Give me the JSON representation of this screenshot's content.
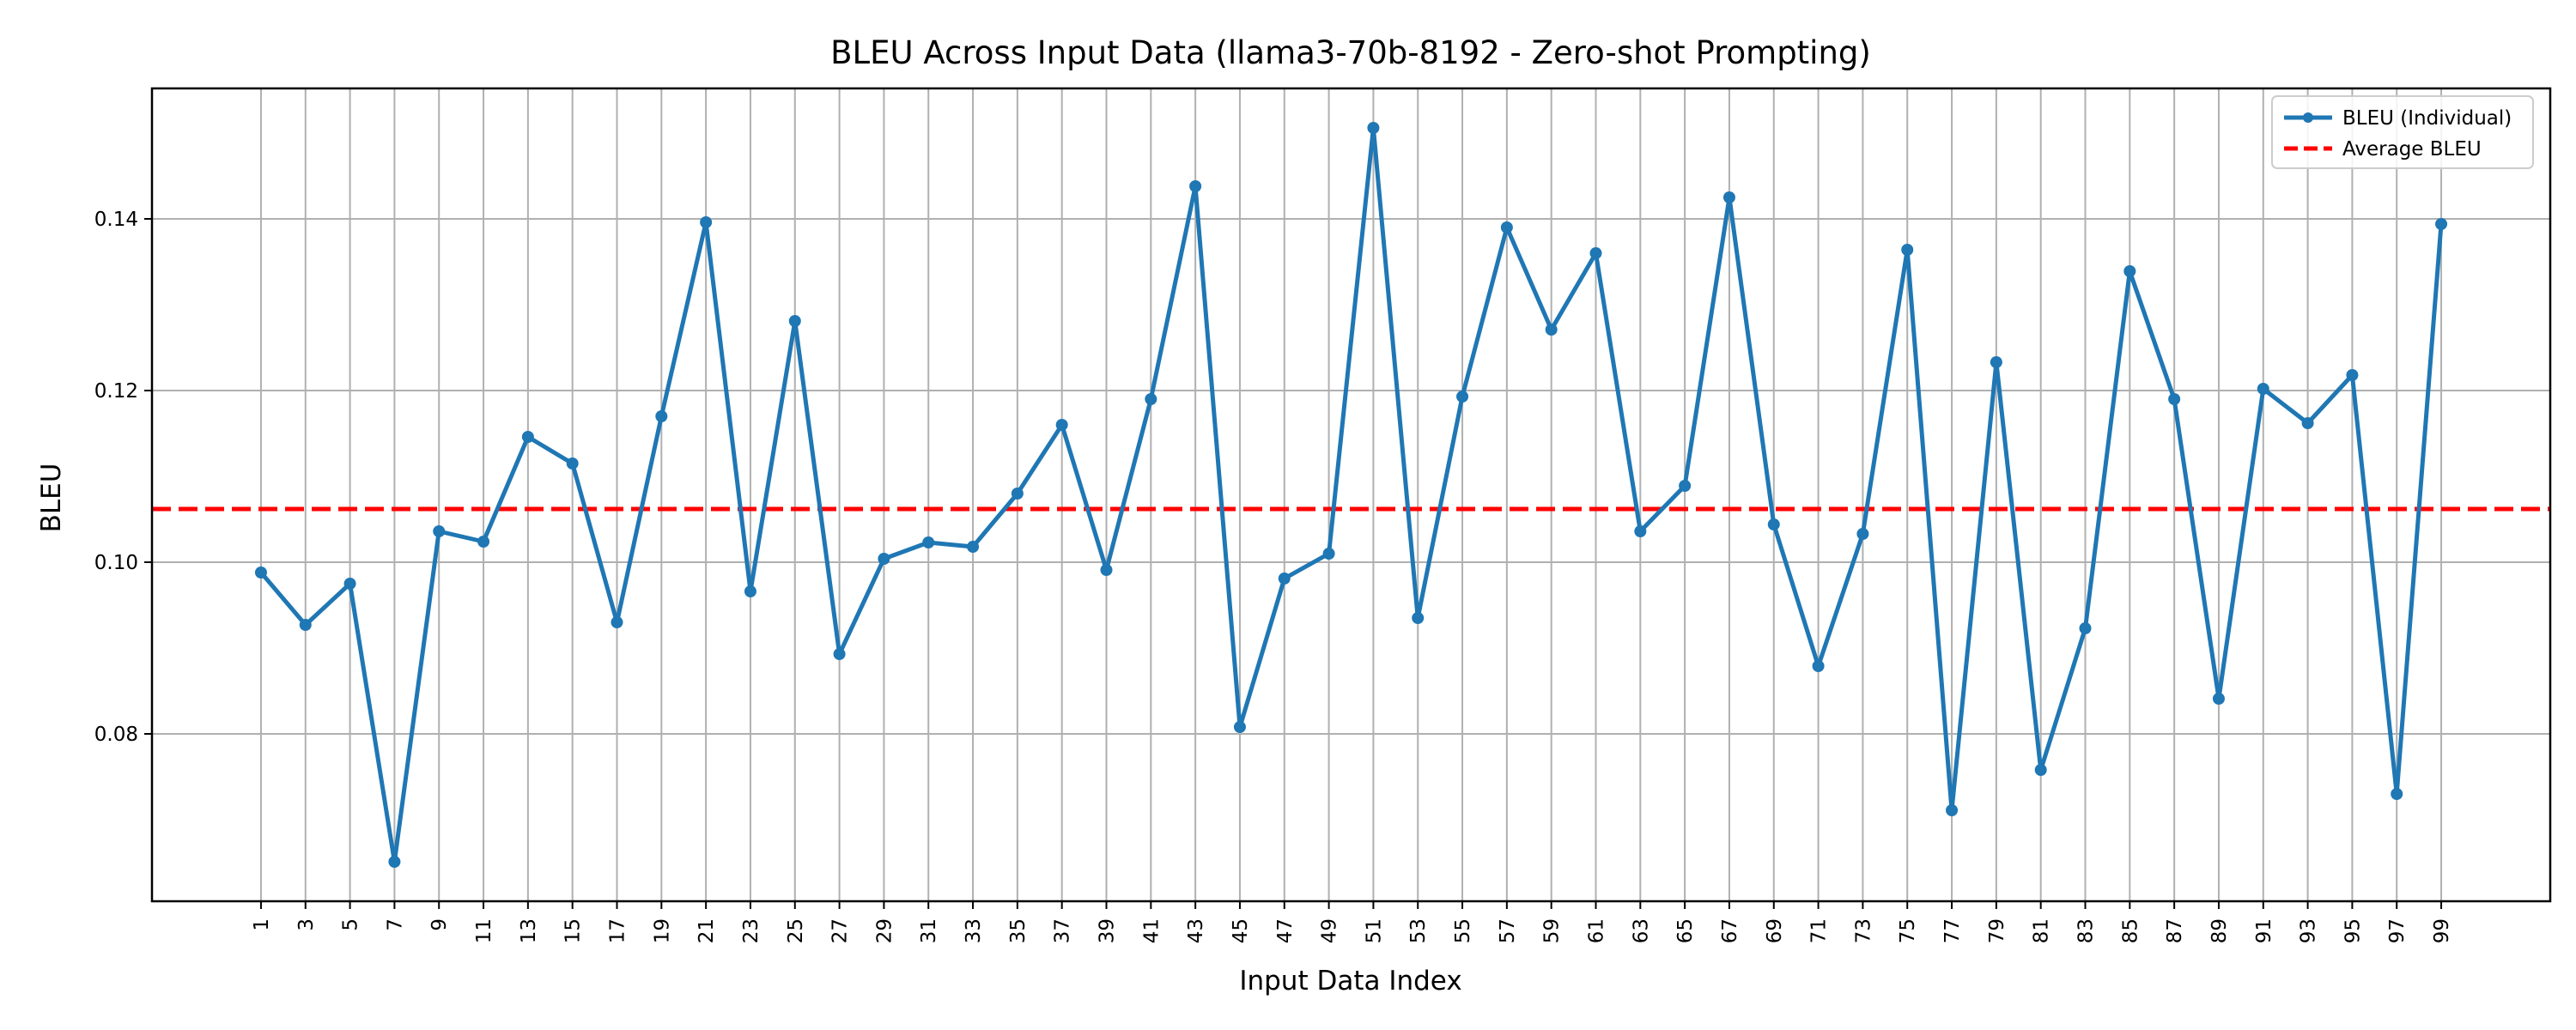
{
  "chart_data": {
    "type": "line",
    "title": "BLEU Across Input Data (llama3-70b-8192 - Zero-shot Prompting)",
    "xlabel": "Input Data Index",
    "ylabel": "BLEU",
    "x": [
      1,
      3,
      5,
      7,
      9,
      11,
      13,
      15,
      17,
      19,
      21,
      23,
      25,
      27,
      29,
      31,
      33,
      35,
      37,
      39,
      41,
      43,
      45,
      47,
      49,
      51,
      53,
      55,
      57,
      59,
      61,
      63,
      65,
      67,
      69,
      71,
      73,
      75,
      77,
      79,
      81,
      83,
      85,
      87,
      89,
      91,
      93,
      95,
      97,
      99
    ],
    "series": [
      {
        "name": "BLEU (Individual)",
        "color": "#1f77b4",
        "values": [
          0.0988,
          0.0927,
          0.0975,
          0.0651,
          0.1036,
          0.1024,
          0.1146,
          0.1115,
          0.093,
          0.117,
          0.1396,
          0.0966,
          0.1281,
          0.0893,
          0.1004,
          0.1023,
          0.1018,
          0.108,
          0.116,
          0.0991,
          0.119,
          0.1438,
          0.0808,
          0.0981,
          0.101,
          0.1506,
          0.0935,
          0.1193,
          0.139,
          0.1271,
          0.136,
          0.1036,
          0.1089,
          0.1425,
          0.1044,
          0.0879,
          0.1033,
          0.1364,
          0.0711,
          0.1233,
          0.0758,
          0.0923,
          0.1339,
          0.119,
          0.0841,
          0.1202,
          0.1162,
          0.1218,
          0.073,
          0.1394
        ]
      }
    ],
    "average": {
      "name": "Average BLEU",
      "value": 0.1062,
      "color": "#ff0000"
    },
    "y_ticks": [
      "0.08",
      "0.10",
      "0.12",
      "0.14"
    ],
    "y_tick_values": [
      0.08,
      0.1,
      0.12,
      0.14
    ],
    "ylim": [
      0.0605,
      0.1552
    ],
    "xlim": [
      -3.9,
      103.9
    ],
    "grid": true,
    "legend_position": "top-right"
  }
}
